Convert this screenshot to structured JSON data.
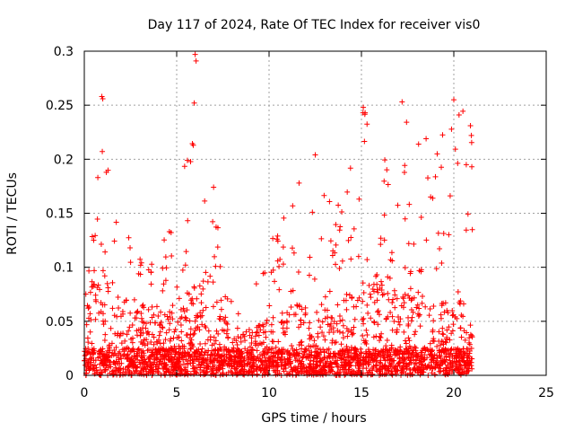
{
  "chart_data": {
    "type": "scatter",
    "title": "Day 117 of 2024, Rate Of TEC Index for receiver vis0",
    "xlabel": "GPS time / hours",
    "ylabel": "ROTI / TECUs",
    "xlim": [
      0,
      25
    ],
    "ylim": [
      0,
      0.3
    ],
    "xticks": [
      0,
      5,
      10,
      15,
      20,
      25
    ],
    "xtick_labels": [
      "0",
      "5",
      "10",
      "15",
      "20",
      "25"
    ],
    "yticks": [
      0,
      0.05,
      0.1,
      0.15,
      0.2,
      0.25,
      0.3
    ],
    "ytick_labels": [
      "0",
      "0.05",
      "0.1",
      "0.15",
      "0.2",
      "0.25",
      "0.3"
    ],
    "grid": true,
    "marker": "+",
    "color": "#ff0000",
    "data_range_hours": [
      0,
      21
    ],
    "envelope": {
      "hours": [
        0,
        0.5,
        1.0,
        1.5,
        2,
        3,
        4,
        5,
        6,
        6.5,
        7,
        8,
        9,
        10,
        11,
        12,
        13,
        14,
        15,
        15.5,
        16,
        17,
        18,
        19,
        20,
        21
      ],
      "max_roti": [
        0.14,
        0.13,
        0.26,
        0.16,
        0.14,
        0.13,
        0.11,
        0.17,
        0.3,
        0.22,
        0.18,
        0.07,
        0.06,
        0.14,
        0.16,
        0.2,
        0.17,
        0.16,
        0.25,
        0.24,
        0.2,
        0.25,
        0.22,
        0.21,
        0.26,
        0.23
      ],
      "typical_roti": [
        0.04,
        0.07,
        0.07,
        0.06,
        0.05,
        0.05,
        0.04,
        0.05,
        0.06,
        0.06,
        0.05,
        0.03,
        0.03,
        0.04,
        0.05,
        0.05,
        0.05,
        0.05,
        0.06,
        0.07,
        0.07,
        0.06,
        0.05,
        0.05,
        0.05,
        0.05
      ]
    },
    "notable_points": [
      {
        "x": 0.95,
        "y": 0.258
      },
      {
        "x": 1.0,
        "y": 0.256
      },
      {
        "x": 6.0,
        "y": 0.297
      },
      {
        "x": 6.05,
        "y": 0.291
      },
      {
        "x": 5.95,
        "y": 0.252
      },
      {
        "x": 5.9,
        "y": 0.213
      },
      {
        "x": 12.5,
        "y": 0.204
      },
      {
        "x": 15.1,
        "y": 0.248
      },
      {
        "x": 15.2,
        "y": 0.243
      },
      {
        "x": 17.2,
        "y": 0.253
      },
      {
        "x": 18.5,
        "y": 0.219
      },
      {
        "x": 19.1,
        "y": 0.205
      },
      {
        "x": 20.0,
        "y": 0.255
      },
      {
        "x": 20.9,
        "y": 0.231
      },
      {
        "x": 20.95,
        "y": 0.222
      }
    ]
  }
}
